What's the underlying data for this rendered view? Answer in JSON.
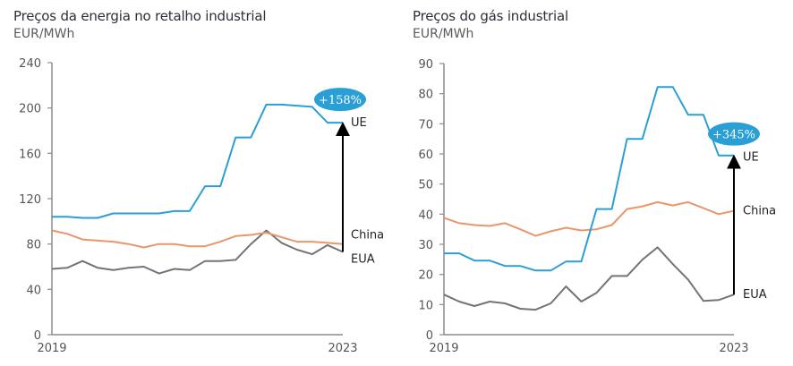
{
  "chart_data": [
    {
      "type": "line",
      "title": "Preços da energia no retalho industrial",
      "ylabel": "EUR/MWh",
      "xlabel": "",
      "x_tick_labels": [
        "2019",
        "2023"
      ],
      "ylim": [
        0,
        240
      ],
      "y_ticks": [
        0,
        40,
        80,
        120,
        160,
        200,
        240
      ],
      "grid": false,
      "series": [
        {
          "name": "UE",
          "color": "#2a9fd6",
          "values": [
            104,
            104,
            103,
            103,
            107,
            107,
            107,
            107,
            109,
            109,
            131,
            131,
            174,
            174,
            203,
            203,
            202,
            201,
            187,
            187
          ]
        },
        {
          "name": "China",
          "color": "#e8976a",
          "values": [
            92,
            89,
            84,
            83,
            82,
            80,
            77,
            80,
            80,
            78,
            78,
            82,
            87,
            88,
            90,
            86,
            82,
            82,
            81,
            80
          ]
        },
        {
          "name": "EUA",
          "color": "#747474",
          "values": [
            58,
            59,
            65,
            59,
            57,
            59,
            60,
            54,
            58,
            57,
            65,
            65,
            66,
            80,
            92,
            81,
            75,
            71,
            79,
            73
          ]
        }
      ],
      "annotation": {
        "text": "+158%",
        "from_series": "EUA",
        "to_series": "UE",
        "color": "#2a9fd6"
      }
    },
    {
      "type": "line",
      "title": "Preços do gás industrial",
      "ylabel": "EUR/MWh",
      "xlabel": "",
      "x_tick_labels": [
        "2019",
        "2023"
      ],
      "ylim": [
        0,
        90
      ],
      "y_ticks": [
        0,
        10,
        20,
        30,
        40,
        50,
        60,
        70,
        80,
        90
      ],
      "grid": false,
      "series": [
        {
          "name": "UE",
          "color": "#2a9fd6",
          "values": [
            27,
            27,
            24.6,
            24.6,
            22.8,
            22.8,
            21.3,
            21.3,
            24.3,
            24.3,
            41.7,
            41.7,
            65,
            65,
            82.2,
            82.2,
            73,
            73,
            59.5,
            59.5
          ]
        },
        {
          "name": "China",
          "color": "#e8976a",
          "values": [
            38.8,
            37,
            36.4,
            36.1,
            37,
            35,
            32.8,
            34.3,
            35.5,
            34.6,
            35,
            36.4,
            41.7,
            42.6,
            44,
            42.9,
            44,
            42,
            40,
            41.1
          ]
        },
        {
          "name": "EUA",
          "color": "#747474",
          "values": [
            13.3,
            11,
            9.5,
            11,
            10.4,
            8.6,
            8.3,
            10.4,
            16,
            11,
            13.9,
            19.5,
            19.5,
            24.9,
            29,
            23.4,
            18.3,
            11.2,
            11.5,
            13.3
          ]
        }
      ],
      "annotation": {
        "text": "+345%",
        "from_series": "EUA",
        "to_series": "UE",
        "color": "#2a9fd6"
      }
    }
  ]
}
